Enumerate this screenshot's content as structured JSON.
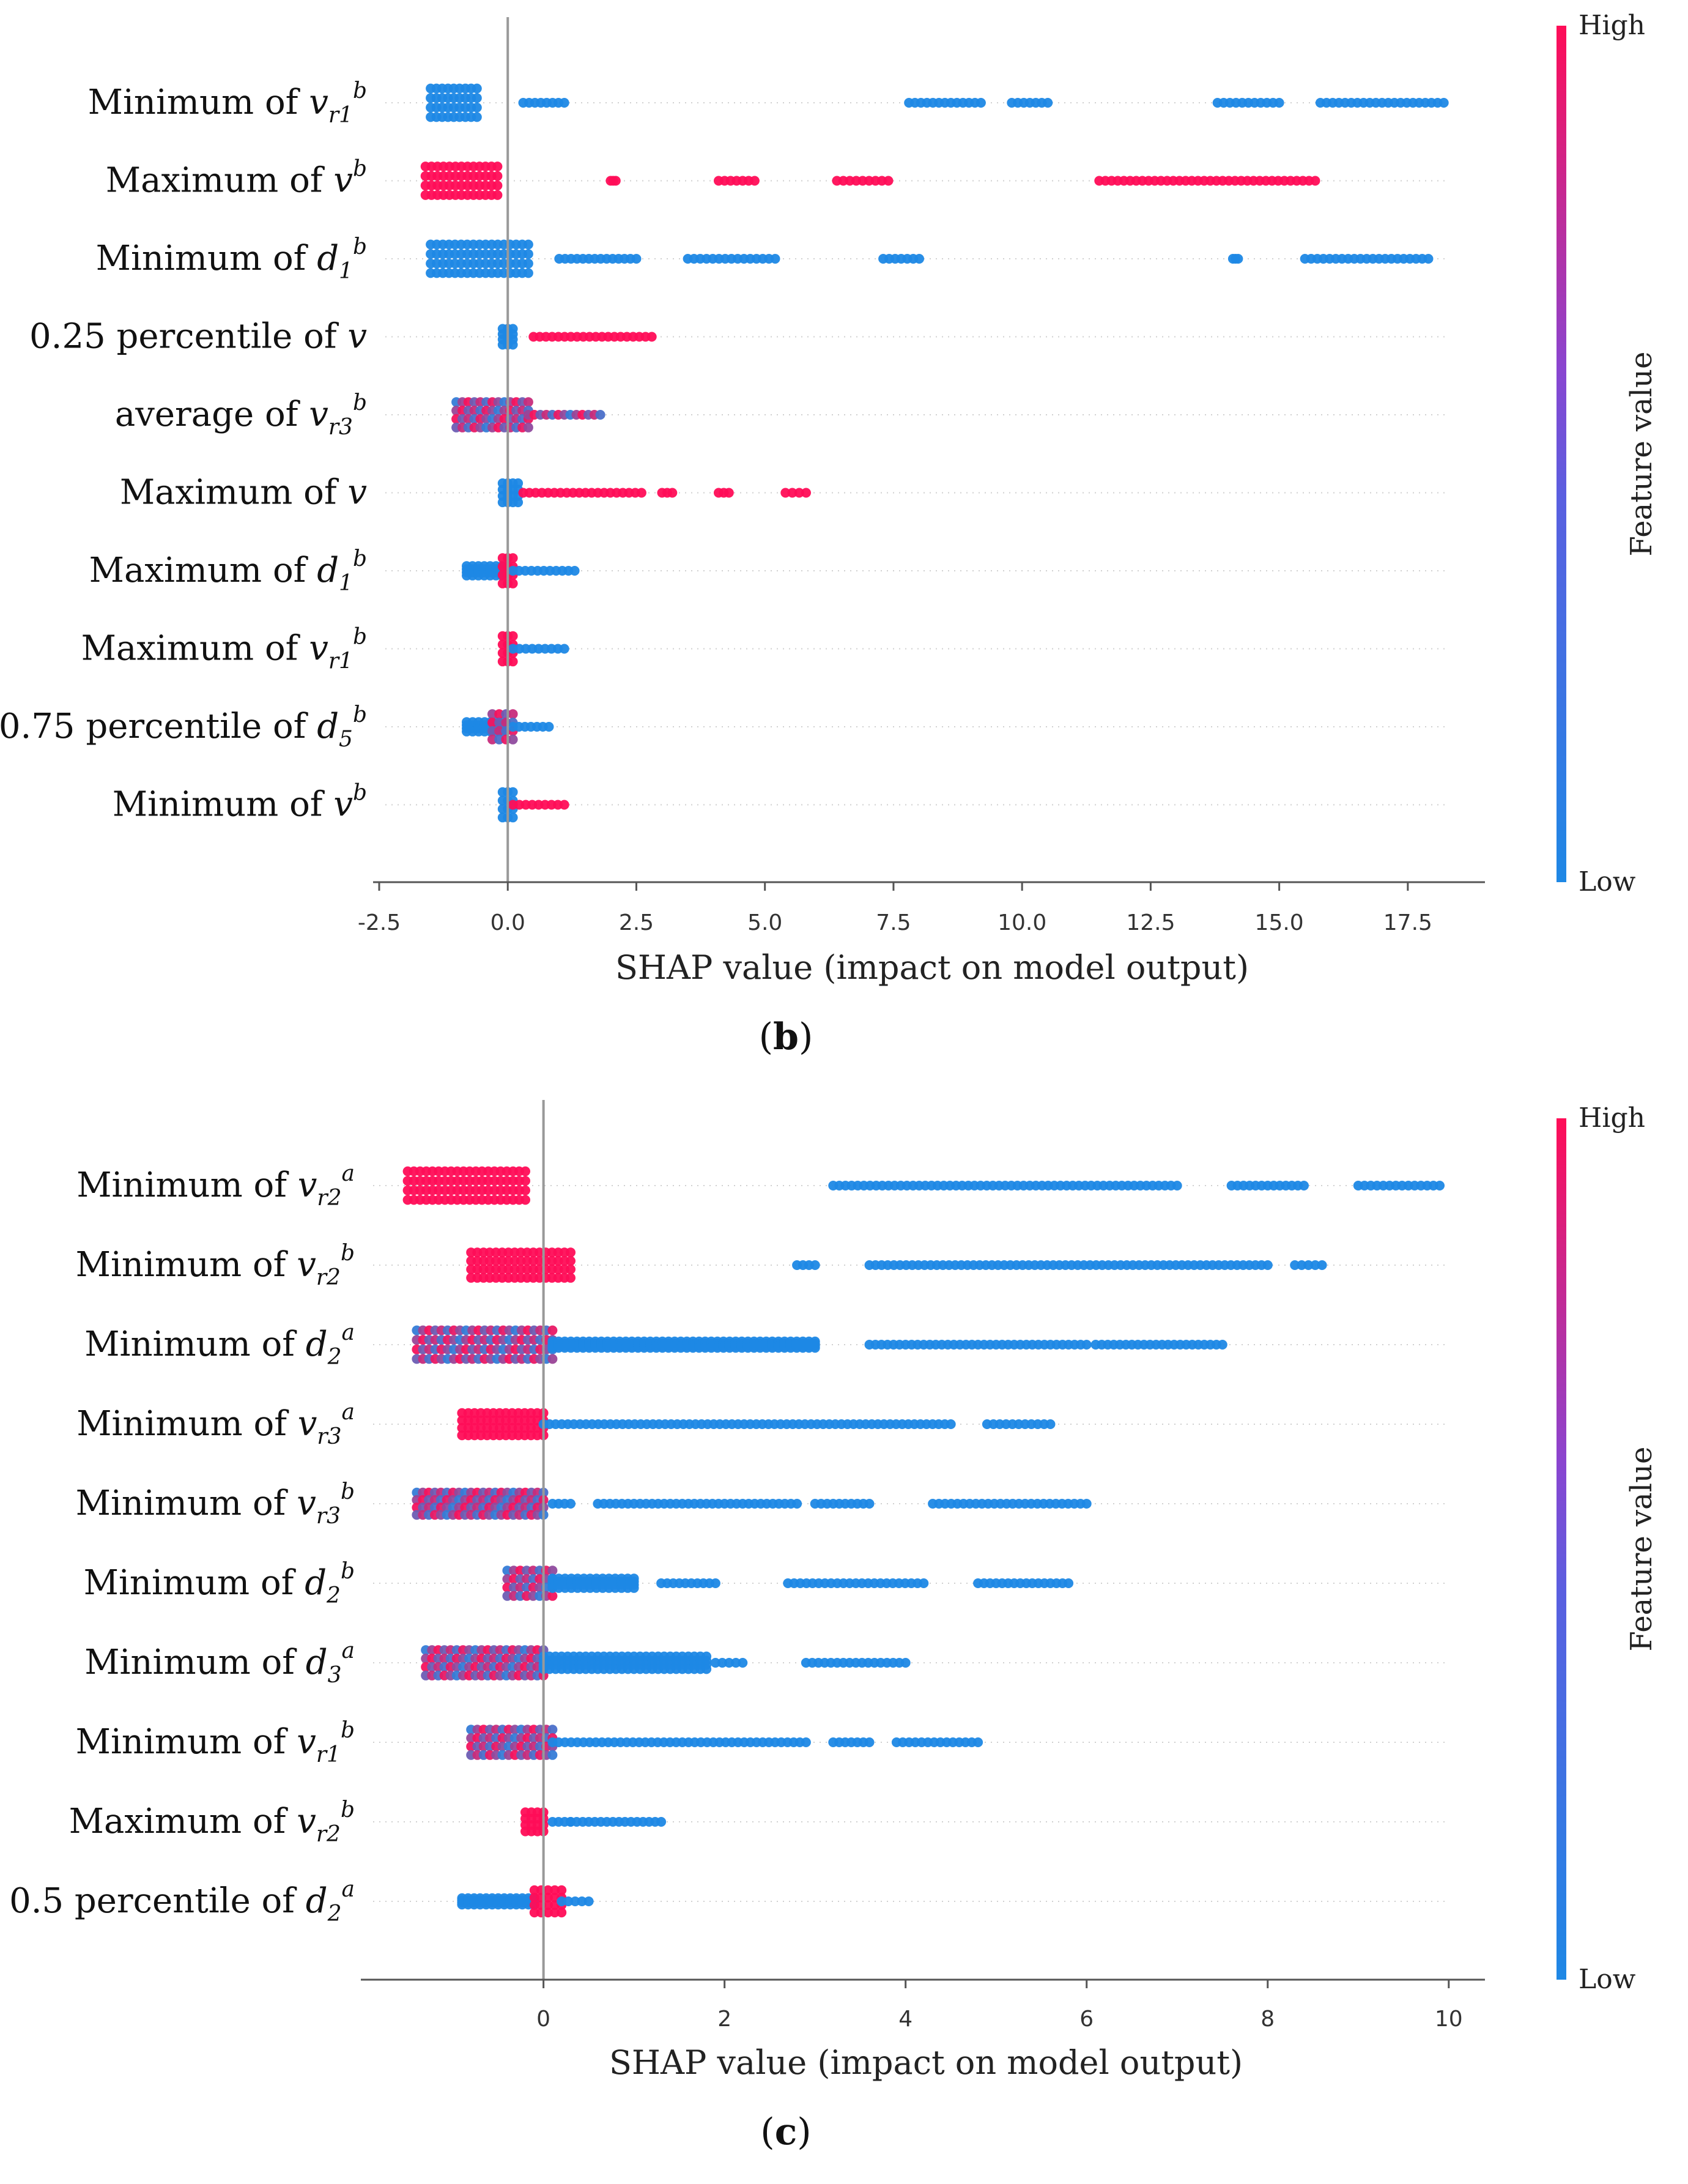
{
  "colors": {
    "low": "#1E88E5",
    "mid": "#7E4BD8",
    "high": "#FF0D57",
    "zero_line": "#999999",
    "grid": "#cccccc"
  },
  "chart_data": [
    {
      "type": "scatter",
      "subtype": "shap_beeswarm",
      "caption_open": "(",
      "caption": "b",
      "caption_close": ")",
      "xlabel": "SHAP value (impact on model output)",
      "xlim": [
        -2.5,
        19.0
      ],
      "xticks": [
        "-2.5",
        "0.0",
        "2.5",
        "5.0",
        "7.5",
        "10.0",
        "12.5",
        "15.0",
        "17.5"
      ],
      "xtick_values": [
        -2.5,
        0,
        2.5,
        5,
        7.5,
        10,
        12.5,
        15,
        17.5
      ],
      "colorbar": {
        "title": "Feature value",
        "high": "High",
        "low": "Low"
      },
      "features": [
        {
          "name": "Minimum of ",
          "var": "v",
          "sub": "r1",
          "sup": "b",
          "clusters": [
            [
              -1.5,
              -0.6,
              "low",
              0.9,
              9
            ],
            [
              0.3,
              1.1,
              "low",
              0,
              3
            ],
            [
              7.8,
              9.2,
              "low",
              0,
              6
            ],
            [
              9.8,
              10.5,
              "low",
              0,
              3
            ],
            [
              13.8,
              15.0,
              "low",
              0,
              3
            ],
            [
              15.8,
              18.2,
              "low",
              0,
              10
            ]
          ]
        },
        {
          "name": "Maximum of ",
          "var": "v",
          "sub": "",
          "sup": "b",
          "clusters": [
            [
              -1.6,
              -0.2,
              "high",
              0.9,
              9
            ],
            [
              2.0,
              2.1,
              "high",
              0,
              1
            ],
            [
              4.1,
              4.8,
              "high",
              0,
              5
            ],
            [
              6.4,
              7.4,
              "high",
              0,
              6
            ],
            [
              11.5,
              15.7,
              "high",
              0,
              14
            ]
          ]
        },
        {
          "name": "Minimum of ",
          "var": "d",
          "sub": "1",
          "sup": "b",
          "clusters": [
            [
              -1.5,
              0.4,
              "low",
              0.9,
              10
            ],
            [
              1.0,
              2.5,
              "low",
              0,
              4
            ],
            [
              3.5,
              5.2,
              "low",
              0,
              4
            ],
            [
              7.3,
              8.0,
              "low",
              0,
              3
            ],
            [
              14.1,
              14.2,
              "low",
              0,
              1
            ],
            [
              15.5,
              17.9,
              "low",
              0,
              10
            ]
          ]
        },
        {
          "name": "0.25 percentile of ",
          "var": "v",
          "sub": "",
          "sup": "",
          "clusters": [
            [
              -0.1,
              0.1,
              "low",
              0.5,
              4
            ],
            [
              0.5,
              2.8,
              "high",
              0,
              10
            ]
          ]
        },
        {
          "name": "average of ",
          "var": "v",
          "sub": "r3",
          "sup": "b",
          "clusters": [
            [
              -1.0,
              0.4,
              "mix",
              0.8,
              10
            ],
            [
              0.4,
              1.8,
              "mix",
              0,
              6
            ]
          ]
        },
        {
          "name": "Maximum of ",
          "var": "v",
          "sub": "",
          "sup": "",
          "clusters": [
            [
              -0.1,
              0.2,
              "low",
              0.6,
              4
            ],
            [
              0.3,
              2.6,
              "high",
              0,
              10
            ],
            [
              3.0,
              3.2,
              "high",
              0,
              2
            ],
            [
              4.1,
              4.3,
              "high",
              0,
              2
            ],
            [
              5.4,
              5.8,
              "high",
              0,
              2
            ]
          ]
        },
        {
          "name": "Maximum of ",
          "var": "d",
          "sub": "1",
          "sup": "b",
          "clusters": [
            [
              -0.8,
              0.0,
              "low",
              0.3,
              4
            ],
            [
              -0.1,
              0.1,
              "high",
              0.8,
              4
            ],
            [
              0.1,
              1.3,
              "low",
              0,
              7
            ]
          ]
        },
        {
          "name": "Maximum of ",
          "var": "v",
          "sub": "r1",
          "sup": "b",
          "clusters": [
            [
              -0.1,
              0.1,
              "high",
              0.8,
              4
            ],
            [
              0.1,
              1.1,
              "low",
              0,
              6
            ]
          ]
        },
        {
          "name": "0.75 percentile of ",
          "var": "d",
          "sub": "5",
          "sup": "b",
          "clusters": [
            [
              -0.8,
              -0.1,
              "low",
              0.3,
              3
            ],
            [
              -0.3,
              0.1,
              "mix",
              0.8,
              4
            ],
            [
              0.1,
              0.8,
              "low",
              0,
              4
            ]
          ]
        },
        {
          "name": "Minimum of ",
          "var": "v",
          "sub": "",
          "sup": "b",
          "clusters": [
            [
              -0.1,
              0.1,
              "low",
              0.8,
              4
            ],
            [
              0.1,
              1.1,
              "high",
              0,
              6
            ]
          ]
        }
      ]
    },
    {
      "type": "scatter",
      "subtype": "shap_beeswarm",
      "caption_open": "(",
      "caption": "c",
      "caption_close": ")",
      "xlabel": "SHAP value (impact on model output)",
      "xlim": [
        -1.95,
        10.4
      ],
      "xticks": [
        "0",
        "2",
        "4",
        "6",
        "8",
        "10"
      ],
      "xtick_values": [
        0,
        2,
        4,
        6,
        8,
        10
      ],
      "colorbar": {
        "title": "Feature value",
        "high": "High",
        "low": "Low"
      },
      "features": [
        {
          "name": "Minimum of ",
          "var": "v",
          "sub": "r2",
          "sup": "a",
          "clusters": [
            [
              -1.5,
              -0.2,
              "high",
              0.9,
              10
            ],
            [
              3.2,
              7.0,
              "low",
              0,
              16
            ],
            [
              7.6,
              8.4,
              "low",
              0,
              4
            ],
            [
              9.0,
              9.9,
              "low",
              0,
              5
            ]
          ]
        },
        {
          "name": "Minimum of ",
          "var": "v",
          "sub": "r2",
          "sup": "b",
          "clusters": [
            [
              -0.8,
              0.3,
              "high",
              0.8,
              9
            ],
            [
              2.8,
              3.0,
              "low",
              0,
              2
            ],
            [
              3.6,
              8.0,
              "low",
              0,
              16
            ],
            [
              8.3,
              8.6,
              "low",
              0,
              2
            ]
          ]
        },
        {
          "name": "Minimum of ",
          "var": "d",
          "sub": "2",
          "sup": "a",
          "clusters": [
            [
              -1.4,
              0.1,
              "mix",
              0.9,
              10
            ],
            [
              0.1,
              3.0,
              "low",
              0.2,
              12
            ],
            [
              3.6,
              6.0,
              "low",
              0,
              10
            ],
            [
              6.1,
              7.5,
              "low",
              0,
              7
            ]
          ]
        },
        {
          "name": "Minimum of ",
          "var": "v",
          "sub": "r3",
          "sup": "a",
          "clusters": [
            [
              -0.9,
              0.0,
              "high",
              0.7,
              8
            ],
            [
              0.0,
              4.5,
              "low",
              0,
              16
            ],
            [
              4.9,
              5.6,
              "low",
              0,
              4
            ]
          ]
        },
        {
          "name": "Minimum of ",
          "var": "v",
          "sub": "r3",
          "sup": "b",
          "clusters": [
            [
              -1.4,
              0.0,
              "mix",
              0.7,
              10
            ],
            [
              0.1,
              0.3,
              "low",
              0,
              2
            ],
            [
              0.6,
              2.8,
              "low",
              0,
              10
            ],
            [
              3.0,
              3.6,
              "low",
              0,
              4
            ],
            [
              4.3,
              6.0,
              "low",
              0,
              7
            ]
          ]
        },
        {
          "name": "Minimum of ",
          "var": "d",
          "sub": "2",
          "sup": "b",
          "clusters": [
            [
              -0.4,
              0.1,
              "mix",
              0.8,
              6
            ],
            [
              0.1,
              1.0,
              "low",
              0.3,
              6
            ],
            [
              1.3,
              1.9,
              "low",
              0,
              3
            ],
            [
              2.7,
              4.2,
              "low",
              0,
              6
            ],
            [
              4.8,
              5.8,
              "low",
              0,
              5
            ]
          ]
        },
        {
          "name": "Minimum of ",
          "var": "d",
          "sub": "3",
          "sup": "a",
          "clusters": [
            [
              -1.3,
              0.0,
              "mix",
              0.8,
              10
            ],
            [
              0.0,
              1.8,
              "low",
              0.4,
              10
            ],
            [
              1.9,
              2.2,
              "low",
              0,
              2
            ],
            [
              2.9,
              4.0,
              "low",
              0,
              6
            ]
          ]
        },
        {
          "name": "Minimum of ",
          "var": "v",
          "sub": "r1",
          "sup": "b",
          "clusters": [
            [
              -0.8,
              0.1,
              "mix",
              0.8,
              8
            ],
            [
              0.1,
              2.9,
              "low",
              0,
              12
            ],
            [
              3.2,
              3.6,
              "low",
              0,
              3
            ],
            [
              3.9,
              4.8,
              "low",
              0,
              5
            ]
          ]
        },
        {
          "name": "Maximum of ",
          "var": "v",
          "sub": "r2",
          "sup": "b",
          "clusters": [
            [
              -0.2,
              0.0,
              "high",
              0.6,
              4
            ],
            [
              0.1,
              0.3,
              "low",
              0,
              2
            ],
            [
              0.3,
              1.3,
              "low",
              0,
              6
            ]
          ]
        },
        {
          "name": "0.5 percentile of ",
          "var": "d",
          "sub": "2",
          "sup": "a",
          "clusters": [
            [
              -0.9,
              -0.1,
              "low",
              0.2,
              6
            ],
            [
              -0.1,
              0.2,
              "high",
              0.7,
              4
            ],
            [
              0.2,
              0.5,
              "low",
              0,
              3
            ]
          ]
        }
      ]
    }
  ]
}
